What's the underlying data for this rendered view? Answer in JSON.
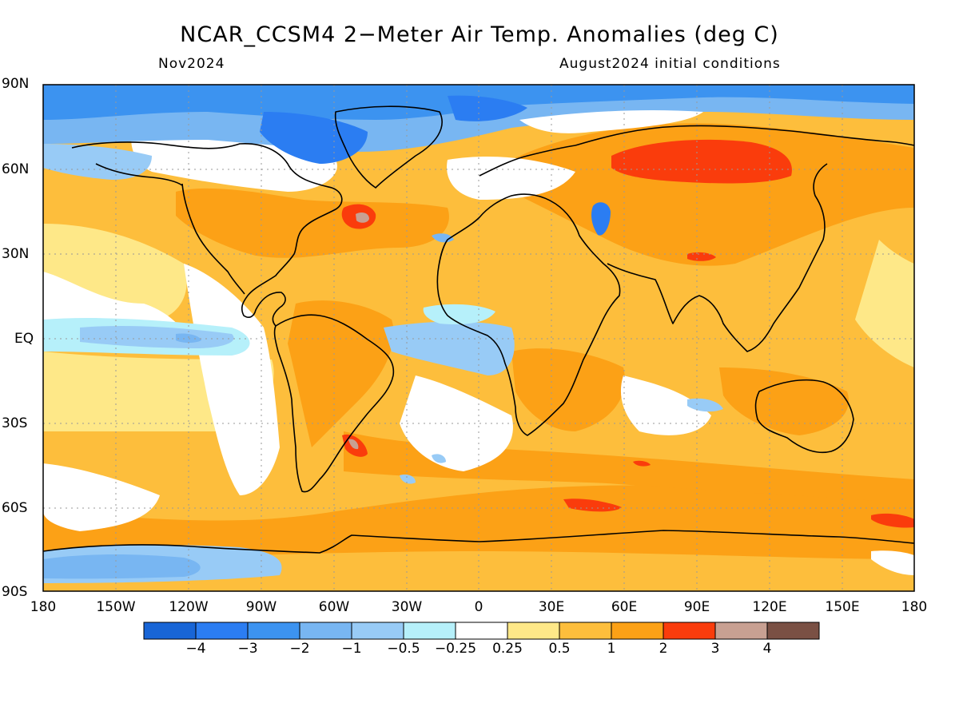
{
  "header": {
    "title": "NCAR_CCSM4 2−Meter Air Temp. Anomalies (deg C)",
    "valid": "Nov2024",
    "init": "August2024 initial conditions"
  },
  "map": {
    "lat_labels": [
      "90N",
      "60N",
      "30N",
      "EQ",
      "30S",
      "60S",
      "90S"
    ],
    "lon_labels": [
      "180",
      "150W",
      "120W",
      "90W",
      "60W",
      "30W",
      "0",
      "30E",
      "60E",
      "90E",
      "120E",
      "150E",
      "180"
    ],
    "colorbar": {
      "colors": [
        "#1865d6",
        "#2b7df2",
        "#3c93f0",
        "#78b6f2",
        "#98cbf6",
        "#b6f0fa",
        "#ffffff",
        "#fee888",
        "#fdbe3c",
        "#fca116",
        "#fa3c0c",
        "#c8a092",
        "#7a5044"
      ],
      "labels": [
        "−4",
        "−3",
        "−2",
        "−1",
        "−0.5",
        "−0.25",
        "0.25",
        "0.5",
        "1",
        "2",
        "3",
        "4"
      ]
    }
  }
}
